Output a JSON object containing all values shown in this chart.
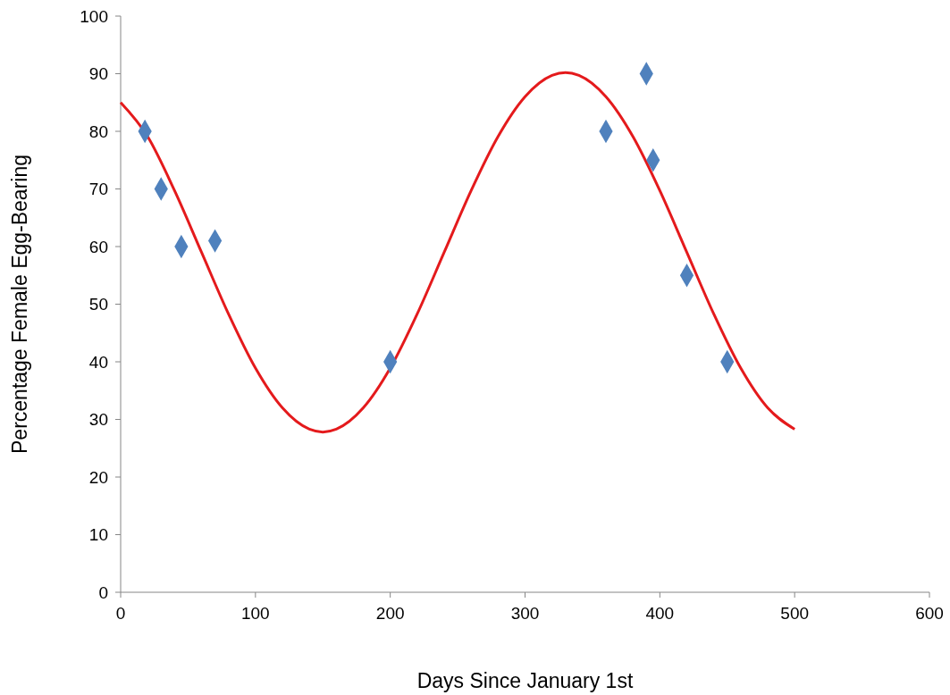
{
  "chart_data": {
    "type": "scatter",
    "xlabel": "Days Since January 1st",
    "ylabel": "Percentage Female Egg-Bearing",
    "xlim": [
      0,
      600
    ],
    "xticks": [
      0,
      100,
      200,
      300,
      400,
      500,
      600
    ],
    "ylim": [
      0,
      100
    ],
    "yticks": [
      0,
      10,
      20,
      30,
      40,
      50,
      60,
      70,
      80,
      90,
      100
    ],
    "grid": false,
    "series": [
      {
        "type": "line",
        "color": "#e41a1c",
        "marker": "none",
        "line_style": "solid",
        "x": [
          0,
          20,
          40,
          60,
          80,
          100,
          120,
          140,
          150,
          160,
          180,
          200,
          220,
          240,
          260,
          280,
          300,
          320,
          330,
          340,
          360,
          380,
          400,
          420,
          440,
          460,
          480,
          500
        ],
        "values": [
          85,
          79.1,
          69.7,
          59,
          48.3,
          38.9,
          32,
          28.3,
          27.8,
          28.3,
          32,
          38.9,
          48.3,
          59,
          69.7,
          79.1,
          86,
          89.7,
          90.2,
          89.7,
          86,
          79.1,
          69.7,
          59,
          48.3,
          38.9,
          32,
          28.3
        ]
      },
      {
        "color": "#4f81bd",
        "marker": "diamond",
        "x": [
          18,
          30,
          45,
          70,
          200,
          360,
          390,
          395,
          420,
          450
        ],
        "values": [
          80,
          70,
          60,
          61,
          40,
          80,
          90,
          75,
          55,
          40
        ]
      }
    ]
  }
}
